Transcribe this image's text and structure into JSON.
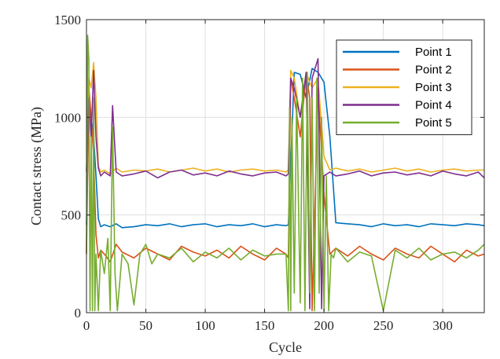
{
  "chart_data": {
    "type": "line",
    "xlabel": "Cycle",
    "ylabel": "Contact stress (MPa)",
    "xlim": [
      0,
      335
    ],
    "ylim": [
      0,
      1500
    ],
    "xticks": [
      0,
      50,
      100,
      150,
      200,
      250,
      300
    ],
    "yticks": [
      0,
      500,
      1000,
      1500
    ],
    "grid": true,
    "legend_position": "top-right",
    "series": [
      {
        "name": "Point 1",
        "color": "#0072BD",
        "x": [
          0,
          2,
          4,
          6,
          8,
          10,
          12,
          15,
          20,
          25,
          30,
          40,
          50,
          60,
          70,
          80,
          90,
          100,
          110,
          120,
          130,
          140,
          150,
          160,
          168,
          170,
          175,
          180,
          185,
          190,
          195,
          200,
          205,
          210,
          220,
          230,
          240,
          250,
          260,
          270,
          280,
          290,
          300,
          310,
          320,
          330,
          335
        ],
        "y": [
          450,
          1050,
          1000,
          900,
          700,
          480,
          440,
          450,
          440,
          455,
          435,
          440,
          450,
          445,
          455,
          440,
          450,
          455,
          440,
          450,
          445,
          455,
          440,
          450,
          445,
          450,
          1230,
          1220,
          1100,
          1250,
          1230,
          1180,
          900,
          460,
          455,
          450,
          440,
          455,
          445,
          450,
          440,
          455,
          450,
          445,
          455,
          450,
          445
        ]
      },
      {
        "name": "Point 2",
        "color": "#D95319",
        "x": [
          0,
          2,
          4,
          6,
          8,
          10,
          12,
          15,
          20,
          25,
          30,
          40,
          50,
          60,
          70,
          80,
          90,
          100,
          110,
          120,
          130,
          140,
          150,
          160,
          168,
          170,
          172,
          175,
          180,
          185,
          188,
          190,
          195,
          200,
          205,
          210,
          220,
          230,
          240,
          250,
          260,
          270,
          280,
          290,
          300,
          310,
          320,
          330,
          335
        ],
        "y": [
          300,
          1150,
          1000,
          800,
          400,
          280,
          320,
          300,
          260,
          350,
          310,
          280,
          330,
          300,
          270,
          340,
          310,
          290,
          320,
          280,
          340,
          300,
          270,
          330,
          300,
          280,
          1200,
          1100,
          900,
          1220,
          1100,
          10,
          1150,
          600,
          300,
          330,
          290,
          340,
          300,
          270,
          330,
          300,
          280,
          340,
          300,
          260,
          320,
          290,
          300
        ]
      },
      {
        "name": "Point 3",
        "color": "#EDB120",
        "x": [
          0,
          2,
          4,
          6,
          8,
          10,
          12,
          15,
          20,
          25,
          30,
          40,
          50,
          60,
          70,
          80,
          90,
          100,
          110,
          120,
          130,
          140,
          150,
          160,
          168,
          170,
          172,
          175,
          180,
          185,
          188,
          190,
          195,
          200,
          205,
          210,
          220,
          230,
          240,
          250,
          260,
          270,
          280,
          290,
          300,
          310,
          320,
          330,
          335
        ],
        "y": [
          730,
          1200,
          1150,
          1280,
          1100,
          750,
          720,
          730,
          710,
          740,
          720,
          730,
          725,
          735,
          720,
          730,
          740,
          725,
          735,
          720,
          730,
          735,
          725,
          730,
          720,
          730,
          1240,
          1200,
          1000,
          1230,
          1180,
          1150,
          1200,
          800,
          730,
          740,
          725,
          735,
          720,
          730,
          740,
          725,
          735,
          720,
          730,
          735,
          725,
          730,
          730
        ]
      },
      {
        "name": "Point 4",
        "color": "#7E2F8E",
        "x": [
          0,
          2,
          4,
          6,
          8,
          10,
          12,
          15,
          20,
          22,
          25,
          30,
          40,
          50,
          60,
          70,
          80,
          90,
          100,
          110,
          120,
          130,
          140,
          150,
          160,
          168,
          170,
          172,
          175,
          180,
          185,
          188,
          190,
          195,
          198,
          200,
          205,
          210,
          220,
          230,
          240,
          250,
          260,
          270,
          280,
          290,
          300,
          310,
          320,
          330,
          335
        ],
        "y": [
          720,
          1100,
          900,
          1240,
          900,
          740,
          700,
          720,
          700,
          1060,
          720,
          700,
          710,
          725,
          690,
          720,
          730,
          705,
          715,
          700,
          725,
          710,
          700,
          715,
          720,
          700,
          710,
          1200,
          1150,
          1000,
          1230,
          20,
          1200,
          1300,
          20,
          700,
          720,
          700,
          710,
          725,
          700,
          715,
          720,
          705,
          715,
          700,
          725,
          710,
          700,
          720,
          690
        ]
      },
      {
        "name": "Point 5",
        "color": "#77AC30",
        "x": [
          0,
          1,
          2,
          3,
          4,
          5,
          6,
          7,
          8,
          10,
          12,
          15,
          18,
          20,
          22,
          24,
          26,
          30,
          35,
          40,
          45,
          50,
          55,
          60,
          70,
          80,
          90,
          100,
          110,
          120,
          130,
          140,
          150,
          160,
          168,
          170,
          171,
          172,
          173,
          175,
          177,
          180,
          182,
          184,
          186,
          188,
          190,
          192,
          194,
          196,
          198,
          200,
          202,
          204,
          206,
          208,
          210,
          220,
          230,
          240,
          250,
          260,
          270,
          280,
          290,
          300,
          310,
          320,
          330,
          335
        ],
        "y": [
          300,
          1420,
          1300,
          10,
          900,
          10,
          1100,
          10,
          300,
          10,
          320,
          200,
          380,
          10,
          950,
          200,
          10,
          300,
          250,
          40,
          300,
          350,
          250,
          300,
          280,
          330,
          260,
          310,
          280,
          330,
          270,
          320,
          290,
          300,
          300,
          10,
          1050,
          10,
          1000,
          100,
          1100,
          50,
          1200,
          10,
          1230,
          100,
          1100,
          10,
          1200,
          100,
          1000,
          10,
          700,
          10,
          300,
          280,
          330,
          260,
          310,
          290,
          10,
          320,
          280,
          330,
          270,
          300,
          310,
          280,
          320,
          350
        ]
      }
    ]
  }
}
